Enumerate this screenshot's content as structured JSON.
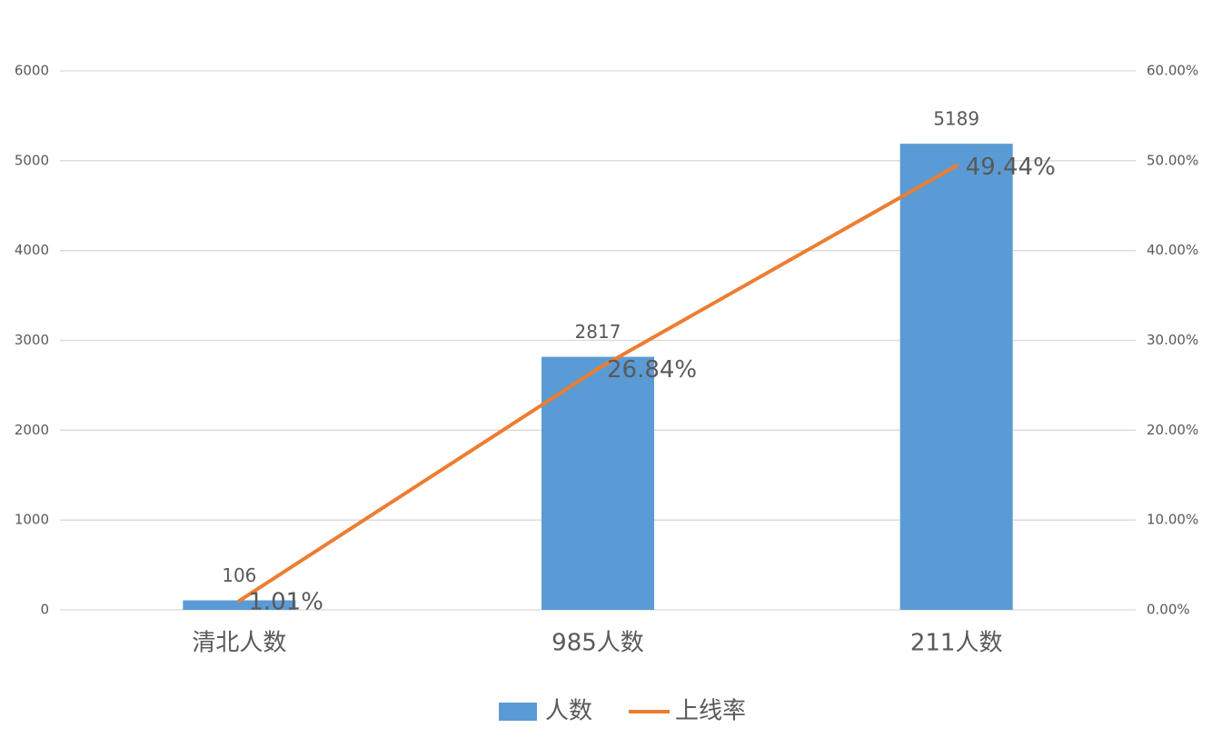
{
  "chart_data": {
    "type": "combo",
    "categories": [
      "清北人数",
      "985人数",
      "211人数"
    ],
    "series": [
      {
        "name": "人数",
        "type": "bar",
        "color": "#5b9bd5",
        "values": [
          106,
          2817,
          5189
        ]
      },
      {
        "name": "上线率",
        "type": "line",
        "axis": "y2",
        "color": "#ed7d31",
        "values": [
          1.01,
          26.84,
          49.44
        ],
        "value_labels": [
          "1.01%",
          "26.84%",
          "49.44%"
        ]
      }
    ],
    "ylim": [
      0,
      6000
    ],
    "yticks": [
      0,
      1000,
      2000,
      3000,
      4000,
      5000,
      6000
    ],
    "y2lim": [
      0,
      60
    ],
    "y2ticks": [
      {
        "value": 0,
        "label": "0.00%"
      },
      {
        "value": 10,
        "label": "10.00%"
      },
      {
        "value": 20,
        "label": "20.00%"
      },
      {
        "value": 30,
        "label": "30.00%"
      },
      {
        "value": 40,
        "label": "40.00%"
      },
      {
        "value": 50,
        "label": "50.00%"
      },
      {
        "value": 60,
        "label": "60.00%"
      }
    ],
    "grid": true,
    "legend": "bottom"
  }
}
